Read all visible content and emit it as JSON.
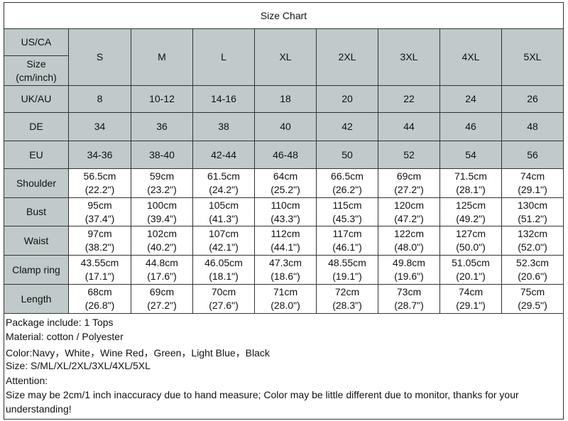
{
  "title": "Size Chart",
  "header": {
    "label_top": "US/CA",
    "label_bottom": [
      "Size",
      "(cm/inch)"
    ],
    "sizes": [
      "S",
      "M",
      "L",
      "XL",
      "2XL",
      "3XL",
      "4XL",
      "5XL"
    ]
  },
  "rows": [
    {
      "label": "UK/AU",
      "cells": [
        "8",
        "10-12",
        "14-16",
        "18",
        "20",
        "22",
        "24",
        "26"
      ]
    },
    {
      "label": "DE",
      "cells": [
        "34",
        "36",
        "38",
        "40",
        "42",
        "44",
        "46",
        "48"
      ]
    },
    {
      "label": "EU",
      "cells": [
        "34-36",
        "38-40",
        "42-44",
        "46-48",
        "50",
        "52",
        "54",
        "56"
      ]
    }
  ],
  "measurements": [
    {
      "label": "Shoulder",
      "cells": [
        [
          "56.5cm",
          "(22.2\")"
        ],
        [
          "59cm",
          "(23.2\")"
        ],
        [
          "61.5cm",
          "(24.2\")"
        ],
        [
          "64cm",
          "(25.2\")"
        ],
        [
          "66.5cm",
          "(26.2\")"
        ],
        [
          "69cm",
          "(27.2\")"
        ],
        [
          "71.5cm",
          "(28.1\")"
        ],
        [
          "74cm",
          "(29.1\")"
        ]
      ]
    },
    {
      "label": "Bust",
      "cells": [
        [
          "95cm",
          "(37.4\")"
        ],
        [
          "100cm",
          "(39.4\")"
        ],
        [
          "105cm",
          "(41.3\")"
        ],
        [
          "110cm",
          "(43.3\")"
        ],
        [
          "115cm",
          "(45.3\")"
        ],
        [
          "120cm",
          "(47.2\")"
        ],
        [
          "125cm",
          "(49.2\")"
        ],
        [
          "130cm",
          "(51.2\")"
        ]
      ]
    },
    {
      "label": "Waist",
      "cells": [
        [
          "97cm",
          "(38.2\")"
        ],
        [
          "102cm",
          "(40.2\")"
        ],
        [
          "107cm",
          "(42.1\")"
        ],
        [
          "112cm",
          "(44.1\")"
        ],
        [
          "117cm",
          "(46.1\")"
        ],
        [
          "122cm",
          "(48.0\")"
        ],
        [
          "127cm",
          "(50.0\")"
        ],
        [
          "132cm",
          "(52.0\")"
        ]
      ]
    },
    {
      "label": "Clamp ring",
      "cells": [
        [
          "43.55cm",
          "(17.1\")"
        ],
        [
          "44.8cm",
          "(17.6\")"
        ],
        [
          "46.05cm",
          "(18.1\")"
        ],
        [
          "47.3cm",
          "(18.6\")"
        ],
        [
          "48.55cm",
          "(19.1\")"
        ],
        [
          "49.8cm",
          "(19.6\")"
        ],
        [
          "51.05cm",
          "(20.1\")"
        ],
        [
          "52.3cm",
          "(20.6\")"
        ]
      ]
    },
    {
      "label": "Length",
      "cells": [
        [
          "68cm",
          "(26.8\")"
        ],
        [
          "69cm",
          "(27.2\")"
        ],
        [
          "70cm",
          "(27.6\")"
        ],
        [
          "71cm",
          "(28.0\")"
        ],
        [
          "72cm",
          "(28.3\")"
        ],
        [
          "73cm",
          "(28.7\")"
        ],
        [
          "74cm",
          "(29.1\")"
        ],
        [
          "75cm",
          "(29.5\")"
        ]
      ]
    }
  ],
  "notes": [
    "Package include: 1 Tops",
    "Material: cotton / Polyester",
    "Color:Navy，White，Wine Red，Green，Light Blue，Black",
    "Size: S/ML/XL/2XL/3XL/4XL/5XL",
    "Attention:",
    "Size may be 2cm/1 inch inaccuracy due to hand measure; Color may be little different due to monitor, thanks for your",
    "understanding!"
  ]
}
